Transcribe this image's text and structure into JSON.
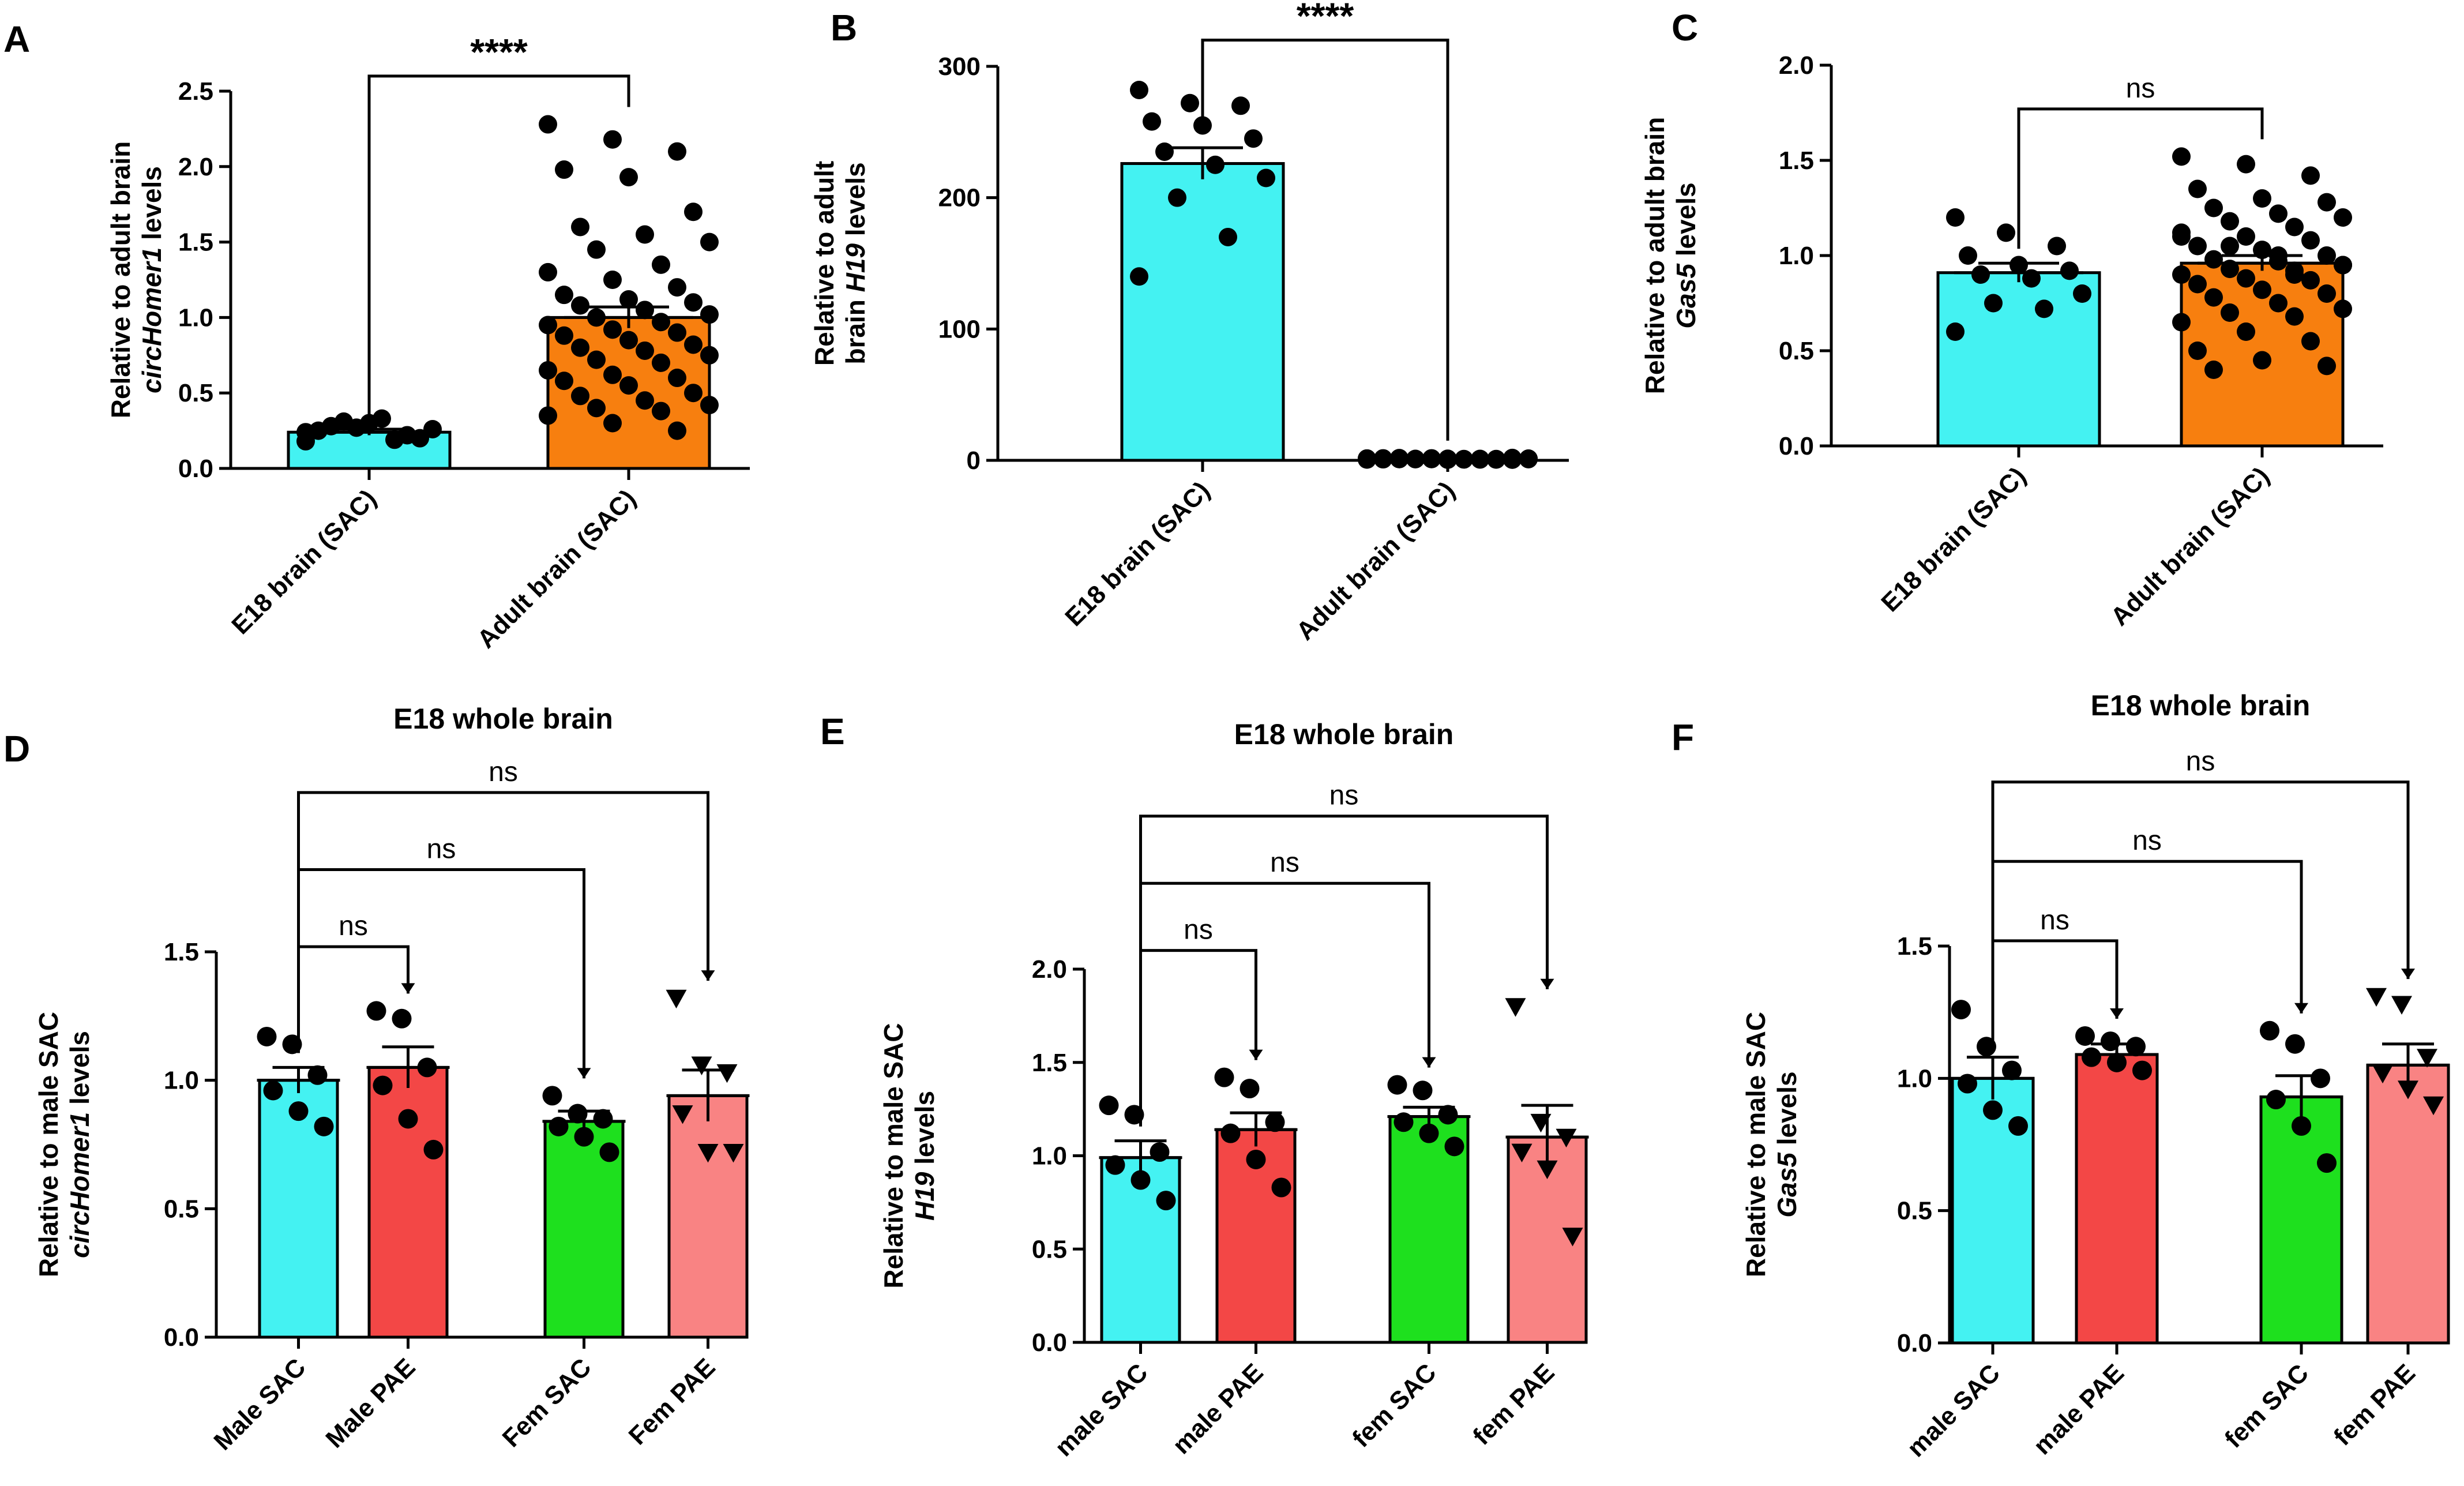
{
  "chart_data": [
    {
      "panel": "A",
      "type": "bar",
      "title": "",
      "ylabel": "Relative to adult brain",
      "ylabel_italic": "circHomer1",
      "ylabel_suffix": " levels",
      "ylim": [
        0,
        2.5
      ],
      "yticks": [
        "0.0",
        "0.5",
        "1.0",
        "1.5",
        "2.0",
        "2.5"
      ],
      "categories": [
        "E18 brain (SAC)",
        "Adult brain (SAC)"
      ],
      "values": [
        0.24,
        1.0
      ],
      "sem": [
        0.02,
        0.07
      ],
      "colors": [
        "#44F2F2",
        "#F77F0F"
      ],
      "points": [
        [
          0.18,
          0.27,
          0.22,
          0.25,
          0.3,
          0.2,
          0.28,
          0.33,
          0.26,
          0.31,
          0.19,
          0.24
        ],
        [
          2.28,
          2.18,
          2.1,
          1.98,
          1.93,
          1.7,
          1.6,
          1.55,
          1.5,
          1.45,
          1.35,
          1.3,
          1.25,
          1.2,
          1.15,
          1.12,
          1.1,
          1.08,
          1.05,
          1.02,
          1.0,
          0.97,
          0.95,
          0.92,
          0.9,
          0.88,
          0.85,
          0.82,
          0.8,
          0.78,
          0.75,
          0.72,
          0.7,
          0.65,
          0.62,
          0.6,
          0.58,
          0.55,
          0.5,
          0.48,
          0.45,
          0.42,
          0.4,
          0.38,
          0.35,
          0.3,
          0.25
        ]
      ],
      "markers": [
        "circle",
        "circle"
      ],
      "comparisons": [
        {
          "from": 0,
          "to": 1,
          "label": "****",
          "level": 2.6
        }
      ]
    },
    {
      "panel": "B",
      "type": "bar",
      "title": "",
      "ylabel": "Relative to adult",
      "ylabel2": "brain",
      "ylabel_italic": "H19",
      "ylabel_suffix": " levels",
      "ylim": [
        0,
        300
      ],
      "yticks": [
        "0",
        "100",
        "200",
        "300"
      ],
      "categories": [
        "E18 brain (SAC)",
        "Adult brain (SAC)"
      ],
      "values": [
        226,
        1
      ],
      "sem": [
        12,
        0.3
      ],
      "colors": [
        "#44F2F2",
        "#F77F0F"
      ],
      "points": [
        [
          282,
          272,
          270,
          258,
          255,
          245,
          235,
          225,
          215,
          200,
          170,
          140
        ],
        [
          1,
          1.5,
          0.8,
          1.2,
          0.5,
          1.8,
          1,
          0.7,
          1.3,
          0.9,
          1.1,
          0.6,
          1.4,
          1,
          0.8,
          1.2,
          0.5,
          1.7,
          1,
          0.9,
          1.1,
          0.7,
          1.3,
          1,
          0.6,
          1.5,
          0.9,
          1.1,
          1,
          0.8,
          1.2,
          1,
          0.7,
          1.4,
          1,
          0.9,
          1.1,
          0.6,
          1.3,
          1,
          0.8,
          1.2,
          1,
          0.9,
          1.1
        ]
      ],
      "markers": [
        "circle",
        "circle"
      ],
      "comparisons": [
        {
          "from": 0,
          "to": 1,
          "label": "****",
          "level": 320
        }
      ]
    },
    {
      "panel": "C",
      "type": "bar",
      "title": "",
      "ylabel": "Relative to adult brain",
      "ylabel_italic": "Gas5",
      "ylabel_suffix": " levels",
      "ylim": [
        0,
        2.0
      ],
      "yticks": [
        "0.0",
        "0.5",
        "1.0",
        "1.5",
        "2.0"
      ],
      "categories": [
        "E18 brain (SAC)",
        "Adult brain (SAC)"
      ],
      "values": [
        0.91,
        0.96
      ],
      "sem": [
        0.05,
        0.04
      ],
      "colors": [
        "#44F2F2",
        "#F77F0F"
      ],
      "points": [
        [
          1.2,
          1.12,
          1.05,
          1.0,
          0.95,
          0.92,
          0.9,
          0.88,
          0.8,
          0.75,
          0.72,
          0.6
        ],
        [
          1.52,
          1.48,
          1.42,
          1.35,
          1.3,
          1.28,
          1.25,
          1.22,
          1.2,
          1.18,
          1.15,
          1.12,
          1.1,
          1.08,
          1.05,
          1.03,
          1.0,
          0.98,
          0.97,
          0.95,
          0.93,
          0.92,
          0.9,
          0.88,
          0.87,
          0.85,
          0.82,
          0.8,
          0.78,
          0.75,
          0.72,
          0.7,
          0.68,
          0.65,
          0.6,
          0.55,
          0.5,
          0.45,
          0.42,
          0.4,
          1.0,
          0.95,
          1.05,
          0.9,
          1.1
        ]
      ],
      "markers": [
        "circle",
        "circle"
      ],
      "comparisons": [
        {
          "from": 0,
          "to": 1,
          "label": "ns",
          "level": 1.77
        }
      ]
    },
    {
      "panel": "D",
      "type": "bar",
      "title": "E18 whole brain",
      "ylabel": "Relative to male SAC",
      "ylabel_italic": "circHomer1",
      "ylabel_suffix": " levels",
      "ylim": [
        0,
        1.5
      ],
      "yticks": [
        "0.0",
        "0.5",
        "1.0",
        "1.5"
      ],
      "categories": [
        "Male SAC",
        "Male PAE",
        "Fem SAC",
        "Fem PAE"
      ],
      "values": [
        1.0,
        1.05,
        0.84,
        0.94
      ],
      "sem": [
        0.05,
        0.08,
        0.04,
        0.1
      ],
      "colors": [
        "#44F2F2",
        "#F34746",
        "#1EE01E",
        "#F98383"
      ],
      "points": [
        [
          1.17,
          1.14,
          1.02,
          0.96,
          0.88,
          0.82
        ],
        [
          1.27,
          1.24,
          1.05,
          0.98,
          0.85,
          0.73
        ],
        [
          0.94,
          0.87,
          0.85,
          0.82,
          0.78,
          0.72
        ],
        [
          1.32,
          1.06,
          1.03,
          0.87,
          0.72,
          0.72
        ]
      ],
      "markers": [
        "circle",
        "circle",
        "circle",
        "triangle-down"
      ],
      "comparisons": [
        {
          "from": 0,
          "to": 1,
          "label": "ns",
          "level": 1.52
        },
        {
          "from": 0,
          "to": 2,
          "label": "ns",
          "level": 1.82
        },
        {
          "from": 0,
          "to": 3,
          "label": "ns",
          "level": 2.12
        }
      ]
    },
    {
      "panel": "E",
      "type": "bar",
      "title": "E18 whole brain",
      "ylabel": "Relative to male SAC",
      "ylabel_italic": "H19",
      "ylabel_suffix": " levels",
      "ylim": [
        0,
        2.0
      ],
      "yticks": [
        "0.0",
        "0.5",
        "1.0",
        "1.5",
        "2.0"
      ],
      "categories": [
        "male SAC",
        "male PAE",
        "fem SAC",
        "fem PAE"
      ],
      "values": [
        0.99,
        1.14,
        1.21,
        1.1
      ],
      "sem": [
        0.09,
        0.09,
        0.05,
        0.17
      ],
      "colors": [
        "#44F2F2",
        "#F34746",
        "#1EE01E",
        "#F98383"
      ],
      "points": [
        [
          1.27,
          1.22,
          1.02,
          0.95,
          0.87,
          0.76
        ],
        [
          1.42,
          1.36,
          1.18,
          1.12,
          0.98,
          0.83
        ],
        [
          1.38,
          1.35,
          1.22,
          1.18,
          1.12,
          1.05
        ],
        [
          1.8,
          1.18,
          1.1,
          1.02,
          0.93,
          0.57
        ]
      ],
      "markers": [
        "circle",
        "circle",
        "circle",
        "triangle-down"
      ],
      "comparisons": [
        {
          "from": 0,
          "to": 1,
          "label": "ns",
          "level": 2.1
        },
        {
          "from": 0,
          "to": 2,
          "label": "ns",
          "level": 2.46
        },
        {
          "from": 0,
          "to": 3,
          "label": "ns",
          "level": 2.82
        }
      ]
    },
    {
      "panel": "F",
      "type": "bar",
      "title": "E18 whole brain",
      "ylabel": "Relative to male SAC",
      "ylabel_italic": "Gas5",
      "ylabel_suffix": " levels",
      "ylim": [
        0,
        1.5
      ],
      "yticks": [
        "0.0",
        "0.5",
        "1.0",
        "1.5"
      ],
      "categories": [
        "male SAC",
        "male PAE",
        "fem SAC",
        "fem PAE"
      ],
      "values": [
        1.0,
        1.09,
        0.93,
        1.05
      ],
      "sem": [
        0.08,
        0.04,
        0.08,
        0.08
      ],
      "colors": [
        "#44F2F2",
        "#F34746",
        "#1EE01E",
        "#F98383"
      ],
      "points": [
        [
          1.26,
          1.12,
          1.03,
          0.98,
          0.88,
          0.82
        ],
        [
          1.16,
          1.14,
          1.12,
          1.08,
          1.06,
          1.03
        ],
        [
          1.18,
          1.13,
          1.0,
          0.92,
          0.82,
          0.68
        ],
        [
          1.31,
          1.28,
          1.08,
          1.02,
          0.96,
          0.9
        ]
      ],
      "markers": [
        "circle",
        "circle",
        "circle",
        "triangle-down"
      ],
      "comparisons": [
        {
          "from": 0,
          "to": 1,
          "label": "ns",
          "level": 1.52
        },
        {
          "from": 0,
          "to": 2,
          "label": "ns",
          "level": 1.82
        },
        {
          "from": 0,
          "to": 3,
          "label": "ns",
          "level": 2.12
        }
      ]
    }
  ]
}
